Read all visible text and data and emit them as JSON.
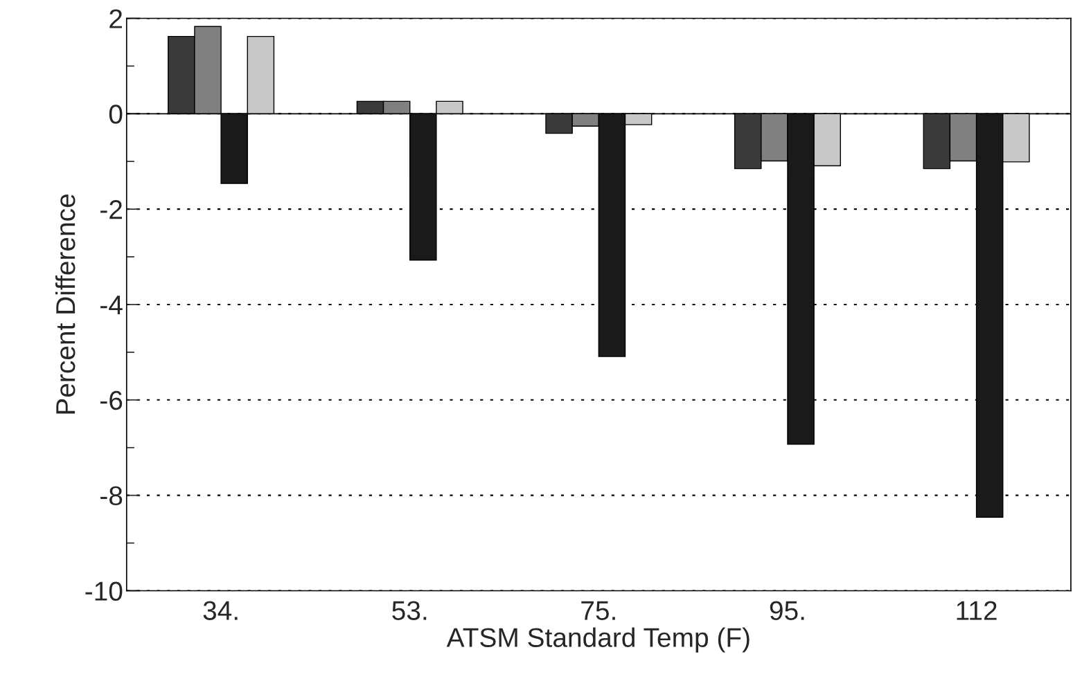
{
  "chart_data": {
    "type": "bar",
    "xlabel": "ATSM Standard Temp (F)",
    "ylabel": "Percent Difference",
    "categories": [
      "34.",
      "53.",
      "75.",
      "95.",
      "112"
    ],
    "series": [
      {
        "color": "#3a3a3a",
        "values": [
          1.62,
          0.26,
          -0.41,
          -1.15,
          -1.15
        ]
      },
      {
        "color": "#808080",
        "values": [
          1.83,
          0.26,
          -0.26,
          -0.99,
          -0.99
        ]
      },
      {
        "color": "#1a1a1a",
        "values": [
          -1.46,
          -3.07,
          -5.09,
          -6.93,
          -8.46
        ]
      },
      {
        "color": "#c8c8c8",
        "values": [
          1.62,
          0.26,
          -0.23,
          -1.09,
          -1.01
        ]
      }
    ],
    "ylim": [
      -10,
      2
    ],
    "yticks": [
      -10,
      {
        "value": -9,
        "label": null
      },
      -8,
      {
        "value": -7,
        "label": null
      },
      -6,
      {
        "value": -5,
        "label": null
      },
      -4,
      {
        "value": -3,
        "label": null
      },
      -2,
      {
        "value": -1,
        "label": null
      },
      0,
      {
        "value": 1,
        "label": null
      },
      2
    ],
    "ref_lines": [
      {
        "axis": "y",
        "value": 0,
        "color": "#000000",
        "line_style": "solid"
      }
    ],
    "grid": "y",
    "legend": false
  }
}
